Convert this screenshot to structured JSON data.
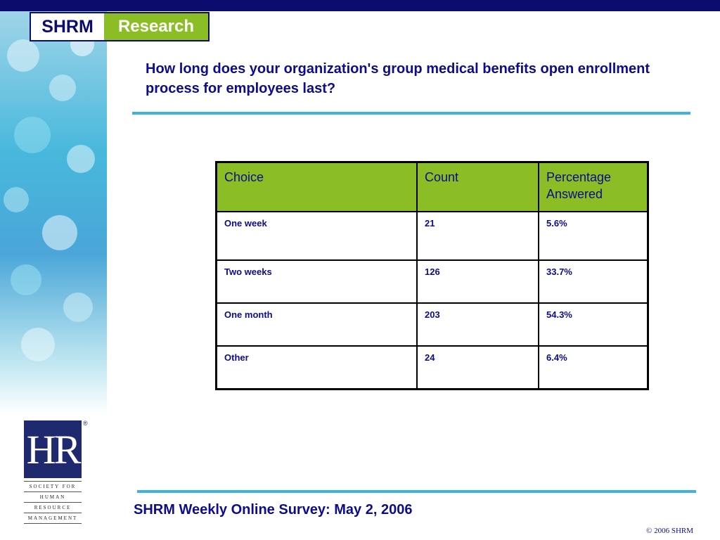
{
  "brand": {
    "left": "SHRM",
    "right": "Research"
  },
  "question": "How long does your organization's group medical benefits open enrollment process for employees last?",
  "table": {
    "headers": [
      "Choice",
      "Count",
      "Percentage Answered"
    ],
    "rows": [
      {
        "choice": "One week",
        "count": "21",
        "percent": "5.6%"
      },
      {
        "choice": "Two weeks",
        "count": "126",
        "percent": "33.7%"
      },
      {
        "choice": "One month",
        "count": "203",
        "percent": "54.3%"
      },
      {
        "choice": "Other",
        "count": "24",
        "percent": "6.4%"
      }
    ]
  },
  "logo": {
    "mark": "HR",
    "registered": "®",
    "org_lines": [
      "SOCIETY FOR",
      "HUMAN",
      "RESOURCE",
      "MANAGEMENT"
    ]
  },
  "footer": {
    "title": "SHRM Weekly Online Survey: May 2, 2006",
    "copyright": "© 2006 SHRM"
  },
  "colors": {
    "navy": "#0c0c6e",
    "green": "#8bbd24",
    "cyan_rule": "#3db3de",
    "text_blue": "#0c0c8c"
  },
  "icons": [
    "hr-logo-icon"
  ]
}
